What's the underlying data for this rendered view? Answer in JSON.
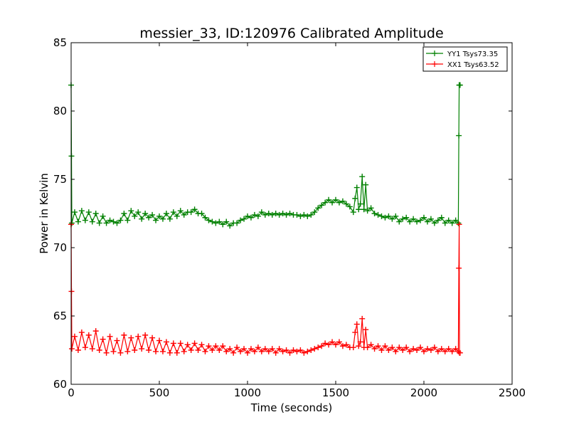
{
  "chart_data": {
    "type": "line",
    "title": "messier_33, ID:120976 Calibrated Amplitude",
    "xlabel": "Time (seconds)",
    "ylabel": "Power in Kelvin",
    "xlim": [
      0,
      2500
    ],
    "ylim": [
      60,
      85
    ],
    "xticks": [
      0,
      500,
      1000,
      1500,
      2000,
      2500
    ],
    "yticks": [
      60,
      65,
      70,
      75,
      80,
      85
    ],
    "grid": false,
    "legend_position": "top-right",
    "marker": "+",
    "series": [
      {
        "name": "YY1 Tsys73.35",
        "color": "#008000",
        "points": [
          [
            0,
            81.9
          ],
          [
            2,
            76.7
          ],
          [
            4,
            71.8
          ],
          [
            20,
            72.6
          ],
          [
            40,
            71.9
          ],
          [
            60,
            72.7
          ],
          [
            80,
            72.0
          ],
          [
            100,
            72.6
          ],
          [
            120,
            71.9
          ],
          [
            140,
            72.5
          ],
          [
            160,
            71.8
          ],
          [
            180,
            72.3
          ],
          [
            200,
            71.8
          ],
          [
            220,
            72.0
          ],
          [
            240,
            71.9
          ],
          [
            260,
            71.8
          ],
          [
            280,
            72.0
          ],
          [
            300,
            72.5
          ],
          [
            320,
            72.0
          ],
          [
            340,
            72.7
          ],
          [
            360,
            72.3
          ],
          [
            380,
            72.6
          ],
          [
            400,
            72.1
          ],
          [
            420,
            72.5
          ],
          [
            440,
            72.2
          ],
          [
            460,
            72.4
          ],
          [
            480,
            72.0
          ],
          [
            500,
            72.3
          ],
          [
            520,
            72.1
          ],
          [
            540,
            72.5
          ],
          [
            560,
            72.1
          ],
          [
            580,
            72.6
          ],
          [
            600,
            72.3
          ],
          [
            620,
            72.7
          ],
          [
            640,
            72.4
          ],
          [
            660,
            72.6
          ],
          [
            680,
            72.6
          ],
          [
            700,
            72.8
          ],
          [
            720,
            72.5
          ],
          [
            740,
            72.5
          ],
          [
            760,
            72.2
          ],
          [
            780,
            72.0
          ],
          [
            800,
            71.9
          ],
          [
            820,
            71.8
          ],
          [
            840,
            71.9
          ],
          [
            860,
            71.7
          ],
          [
            880,
            71.9
          ],
          [
            900,
            71.6
          ],
          [
            920,
            71.8
          ],
          [
            940,
            71.8
          ],
          [
            960,
            72.0
          ],
          [
            980,
            72.1
          ],
          [
            1000,
            72.3
          ],
          [
            1020,
            72.2
          ],
          [
            1040,
            72.4
          ],
          [
            1060,
            72.3
          ],
          [
            1080,
            72.6
          ],
          [
            1100,
            72.4
          ],
          [
            1120,
            72.5
          ],
          [
            1140,
            72.4
          ],
          [
            1160,
            72.5
          ],
          [
            1180,
            72.4
          ],
          [
            1200,
            72.5
          ],
          [
            1220,
            72.4
          ],
          [
            1240,
            72.5
          ],
          [
            1260,
            72.4
          ],
          [
            1280,
            72.4
          ],
          [
            1300,
            72.3
          ],
          [
            1320,
            72.4
          ],
          [
            1340,
            72.3
          ],
          [
            1360,
            72.4
          ],
          [
            1380,
            72.6
          ],
          [
            1400,
            72.9
          ],
          [
            1420,
            73.1
          ],
          [
            1440,
            73.3
          ],
          [
            1460,
            73.5
          ],
          [
            1480,
            73.3
          ],
          [
            1500,
            73.5
          ],
          [
            1520,
            73.3
          ],
          [
            1540,
            73.4
          ],
          [
            1560,
            73.2
          ],
          [
            1580,
            73.0
          ],
          [
            1600,
            72.6
          ],
          [
            1610,
            73.6
          ],
          [
            1620,
            74.4
          ],
          [
            1630,
            72.8
          ],
          [
            1640,
            73.2
          ],
          [
            1650,
            75.2
          ],
          [
            1660,
            72.8
          ],
          [
            1670,
            74.6
          ],
          [
            1680,
            72.7
          ],
          [
            1700,
            72.9
          ],
          [
            1720,
            72.5
          ],
          [
            1740,
            72.4
          ],
          [
            1760,
            72.3
          ],
          [
            1780,
            72.2
          ],
          [
            1800,
            72.3
          ],
          [
            1820,
            72.1
          ],
          [
            1840,
            72.3
          ],
          [
            1860,
            71.9
          ],
          [
            1880,
            72.1
          ],
          [
            1900,
            72.2
          ],
          [
            1920,
            71.9
          ],
          [
            1940,
            72.1
          ],
          [
            1960,
            71.9
          ],
          [
            1980,
            72.0
          ],
          [
            2000,
            72.2
          ],
          [
            2020,
            71.9
          ],
          [
            2040,
            72.1
          ],
          [
            2060,
            71.8
          ],
          [
            2080,
            72.0
          ],
          [
            2100,
            72.2
          ],
          [
            2120,
            71.8
          ],
          [
            2140,
            72.0
          ],
          [
            2160,
            71.8
          ],
          [
            2180,
            72.0
          ],
          [
            2195,
            71.8
          ],
          [
            2198,
            78.2
          ],
          [
            2200,
            81.9
          ],
          [
            2202,
            81.9
          ],
          [
            2205,
            81.9
          ]
        ]
      },
      {
        "name": "XX1 Tsys63.52",
        "color": "#ff0000",
        "points": [
          [
            0,
            71.7
          ],
          [
            2,
            66.8
          ],
          [
            4,
            62.6
          ],
          [
            20,
            63.5
          ],
          [
            40,
            62.5
          ],
          [
            60,
            63.8
          ],
          [
            80,
            62.7
          ],
          [
            100,
            63.6
          ],
          [
            120,
            62.6
          ],
          [
            140,
            63.9
          ],
          [
            160,
            62.5
          ],
          [
            180,
            63.3
          ],
          [
            200,
            62.3
          ],
          [
            220,
            63.5
          ],
          [
            240,
            62.4
          ],
          [
            260,
            63.2
          ],
          [
            280,
            62.3
          ],
          [
            300,
            63.6
          ],
          [
            320,
            62.4
          ],
          [
            340,
            63.4
          ],
          [
            360,
            62.5
          ],
          [
            380,
            63.5
          ],
          [
            400,
            62.6
          ],
          [
            420,
            63.6
          ],
          [
            440,
            62.5
          ],
          [
            460,
            63.4
          ],
          [
            480,
            62.4
          ],
          [
            500,
            63.2
          ],
          [
            520,
            62.4
          ],
          [
            540,
            63.1
          ],
          [
            560,
            62.3
          ],
          [
            580,
            63.0
          ],
          [
            600,
            62.3
          ],
          [
            620,
            63.0
          ],
          [
            640,
            62.4
          ],
          [
            660,
            62.9
          ],
          [
            680,
            62.5
          ],
          [
            700,
            63.0
          ],
          [
            720,
            62.5
          ],
          [
            740,
            62.9
          ],
          [
            760,
            62.4
          ],
          [
            780,
            62.8
          ],
          [
            800,
            62.5
          ],
          [
            820,
            62.8
          ],
          [
            840,
            62.5
          ],
          [
            860,
            62.8
          ],
          [
            880,
            62.4
          ],
          [
            900,
            62.6
          ],
          [
            920,
            62.3
          ],
          [
            940,
            62.7
          ],
          [
            960,
            62.4
          ],
          [
            980,
            62.6
          ],
          [
            1000,
            62.3
          ],
          [
            1020,
            62.6
          ],
          [
            1040,
            62.4
          ],
          [
            1060,
            62.7
          ],
          [
            1080,
            62.4
          ],
          [
            1100,
            62.6
          ],
          [
            1120,
            62.4
          ],
          [
            1140,
            62.6
          ],
          [
            1160,
            62.3
          ],
          [
            1180,
            62.6
          ],
          [
            1200,
            62.4
          ],
          [
            1220,
            62.5
          ],
          [
            1240,
            62.3
          ],
          [
            1260,
            62.5
          ],
          [
            1280,
            62.4
          ],
          [
            1300,
            62.5
          ],
          [
            1320,
            62.3
          ],
          [
            1340,
            62.4
          ],
          [
            1360,
            62.5
          ],
          [
            1380,
            62.6
          ],
          [
            1400,
            62.7
          ],
          [
            1420,
            62.8
          ],
          [
            1440,
            63.0
          ],
          [
            1460,
            62.9
          ],
          [
            1480,
            63.1
          ],
          [
            1500,
            62.9
          ],
          [
            1520,
            63.1
          ],
          [
            1540,
            62.8
          ],
          [
            1560,
            62.9
          ],
          [
            1580,
            62.7
          ],
          [
            1600,
            62.7
          ],
          [
            1610,
            63.8
          ],
          [
            1620,
            64.4
          ],
          [
            1630,
            62.8
          ],
          [
            1640,
            63.1
          ],
          [
            1650,
            64.8
          ],
          [
            1660,
            62.7
          ],
          [
            1670,
            64.0
          ],
          [
            1680,
            62.7
          ],
          [
            1700,
            62.9
          ],
          [
            1720,
            62.6
          ],
          [
            1740,
            62.8
          ],
          [
            1760,
            62.5
          ],
          [
            1780,
            62.8
          ],
          [
            1800,
            62.5
          ],
          [
            1820,
            62.7
          ],
          [
            1840,
            62.4
          ],
          [
            1860,
            62.7
          ],
          [
            1880,
            62.5
          ],
          [
            1900,
            62.7
          ],
          [
            1920,
            62.4
          ],
          [
            1940,
            62.6
          ],
          [
            1960,
            62.5
          ],
          [
            1980,
            62.7
          ],
          [
            2000,
            62.4
          ],
          [
            2020,
            62.6
          ],
          [
            2040,
            62.5
          ],
          [
            2060,
            62.7
          ],
          [
            2080,
            62.4
          ],
          [
            2100,
            62.6
          ],
          [
            2120,
            62.4
          ],
          [
            2140,
            62.6
          ],
          [
            2160,
            62.4
          ],
          [
            2180,
            62.6
          ],
          [
            2195,
            62.4
          ],
          [
            2198,
            68.5
          ],
          [
            2200,
            71.7
          ],
          [
            2202,
            62.3
          ],
          [
            2205,
            62.3
          ]
        ]
      }
    ]
  }
}
